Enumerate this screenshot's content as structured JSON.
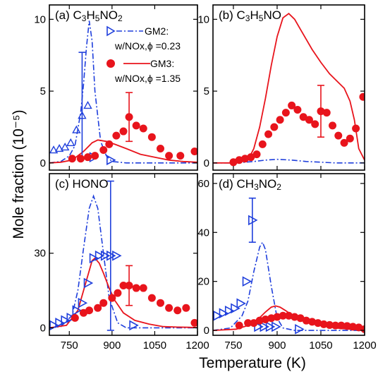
{
  "colors": {
    "gm2": "#1f3fdc",
    "gm3": "#e8141c",
    "axis": "#000000"
  },
  "axes": {
    "xlabel": "Temperature (K)",
    "ylabel": "Mole fraction (10⁻⁵)"
  },
  "legend": {
    "gm2_line1": "GM2:",
    "gm2_line2": "w/NOx,ϕ =0.23",
    "gm3_line1": "GM3:",
    "gm3_line2": "w/NOx,ϕ =1.35"
  },
  "chart_data": [
    {
      "type": "scatter",
      "title": "(a) C3H5NO2",
      "xlim": [
        680,
        1200
      ],
      "ylim": [
        -0.5,
        11
      ],
      "x_ticks": [
        750,
        900,
        1050,
        1200
      ],
      "y_ticks": [
        0,
        5,
        10
      ],
      "series": [
        {
          "name": "GM2: w/NOx,ϕ =0.23",
          "kind": "markers",
          "x": [
            695,
            715,
            735,
            755,
            775,
            795,
            815,
            835,
            895
          ],
          "y": [
            0.9,
            1.0,
            1.1,
            1.4,
            2.3,
            3.3,
            4.0,
            0.4,
            0.2
          ],
          "errorbars": [
            {
              "x": 795,
              "y": 4.0,
              "err": 3.7
            }
          ]
        },
        {
          "name": "GM2 model",
          "kind": "dashdot",
          "x": [
            680,
            720,
            750,
            770,
            790,
            800,
            810,
            820,
            830,
            840,
            860,
            880,
            900,
            950,
            1000,
            1100,
            1200
          ],
          "y": [
            0.0,
            0.1,
            0.5,
            1.2,
            3.5,
            5.5,
            8.0,
            9.9,
            8.5,
            5.0,
            1.5,
            0.5,
            0.1,
            0.0,
            0.0,
            0.0,
            0.0
          ]
        },
        {
          "name": "GM3: w/NOx,ϕ =1.35",
          "kind": "markers",
          "x": [
            760,
            790,
            815,
            840,
            870,
            890,
            915,
            940,
            960,
            985,
            1010,
            1040,
            1070,
            1100,
            1140,
            1190
          ],
          "y": [
            0.3,
            0.3,
            0.4,
            0.5,
            0.9,
            1.3,
            1.9,
            2.2,
            3.2,
            2.6,
            2.4,
            1.8,
            1.0,
            0.5,
            0.5,
            0.8
          ],
          "errorbars": [
            {
              "x": 960,
              "y": 3.2,
              "err": 1.7
            }
          ]
        },
        {
          "name": "GM3 model",
          "kind": "solid",
          "x": [
            680,
            720,
            760,
            800,
            830,
            850,
            880,
            910,
            950,
            1000,
            1050,
            1100,
            1150,
            1200
          ],
          "y": [
            0.0,
            0.05,
            0.2,
            0.8,
            1.4,
            1.6,
            1.5,
            1.3,
            1.0,
            0.6,
            0.4,
            0.2,
            0.1,
            0.05
          ]
        }
      ]
    },
    {
      "type": "scatter",
      "title": "(b) C3H5NO",
      "xlim": [
        680,
        1200
      ],
      "ylim": [
        -0.5,
        11
      ],
      "x_ticks": [
        750,
        900,
        1050,
        1200
      ],
      "y_ticks": [
        0,
        5,
        10
      ],
      "series": [
        {
          "name": "GM2: w/NOx,ϕ =0.23",
          "kind": "markers",
          "x": [],
          "y": []
        },
        {
          "name": "GM2 model",
          "kind": "dashdot",
          "x": [
            680,
            760,
            820,
            860,
            900,
            950,
            1000,
            1050,
            1100,
            1150,
            1200
          ],
          "y": [
            0.0,
            0.0,
            0.1,
            0.2,
            0.25,
            0.2,
            0.1,
            0.05,
            0.0,
            0.0,
            0.0
          ]
        },
        {
          "name": "GM3: w/NOx,ϕ =1.35",
          "kind": "markers",
          "x": [
            750,
            770,
            790,
            810,
            830,
            850,
            870,
            890,
            910,
            930,
            950,
            970,
            990,
            1010,
            1030,
            1050,
            1070,
            1090,
            1110,
            1130,
            1150,
            1170,
            1195
          ],
          "y": [
            0.05,
            0.2,
            0.3,
            0.4,
            0.6,
            1.3,
            2.0,
            2.5,
            3.0,
            3.5,
            4.0,
            3.7,
            3.2,
            3.0,
            2.7,
            3.6,
            3.5,
            2.6,
            1.9,
            1.4,
            1.7,
            2.4,
            4.6
          ],
          "errorbars": [
            {
              "x": 1050,
              "y": 3.6,
              "err": 1.8
            }
          ]
        },
        {
          "name": "GM3 model",
          "kind": "solid",
          "x": [
            680,
            760,
            800,
            820,
            840,
            860,
            880,
            900,
            920,
            940,
            960,
            980,
            1000,
            1020,
            1050,
            1080,
            1110,
            1130,
            1150,
            1165,
            1180,
            1200
          ],
          "y": [
            0.0,
            0.0,
            0.2,
            1.0,
            2.5,
            4.5,
            6.8,
            8.8,
            10.1,
            10.4,
            10.0,
            9.3,
            8.6,
            7.9,
            7.0,
            6.2,
            5.6,
            5.2,
            4.3,
            3.0,
            1.0,
            0.2
          ]
        }
      ]
    },
    {
      "type": "scatter",
      "title": "(c) HONO",
      "xlim": [
        680,
        1200
      ],
      "ylim": [
        -3,
        62
      ],
      "x_ticks": [
        750,
        900,
        1050,
        1200
      ],
      "y_ticks": [
        0,
        30
      ],
      "series": [
        {
          "name": "GM2: w/NOx,ϕ =0.23",
          "kind": "markers",
          "x": [
            695,
            715,
            735,
            755,
            775,
            795,
            815,
            835,
            855,
            875,
            895,
            915,
            975
          ],
          "y": [
            1,
            2,
            3,
            4,
            7,
            10,
            18,
            28,
            29,
            29,
            29,
            29,
            1
          ],
          "errorbars": [
            {
              "x": 895,
              "y": 29,
              "err": 30
            }
          ]
        },
        {
          "name": "GM2 model",
          "kind": "dashdot",
          "x": [
            680,
            720,
            760,
            780,
            800,
            820,
            835,
            850,
            870,
            890,
            920,
            950,
            1000,
            1100,
            1200
          ],
          "y": [
            0.0,
            0.5,
            5,
            15,
            32,
            48,
            53,
            48,
            30,
            12,
            2,
            0,
            0,
            0,
            0
          ]
        },
        {
          "name": "GM3: w/NOx,ϕ =1.35",
          "kind": "markers",
          "x": [
            770,
            800,
            820,
            850,
            870,
            900,
            920,
            940,
            960,
            985,
            1010,
            1040,
            1070,
            1100,
            1130,
            1160,
            1190
          ],
          "y": [
            4,
            6,
            7,
            8,
            10,
            12,
            14,
            17,
            17,
            16,
            16,
            12,
            10,
            8,
            7,
            8,
            2
          ],
          "errorbars": [
            {
              "x": 960,
              "y": 17,
              "err": 8
            }
          ]
        },
        {
          "name": "GM3 model",
          "kind": "solid",
          "x": [
            680,
            740,
            780,
            810,
            830,
            840,
            855,
            870,
            890,
            910,
            940,
            980,
            1030,
            1080,
            1130,
            1170,
            1200
          ],
          "y": [
            0.0,
            1,
            7,
            19,
            27,
            28,
            26,
            22,
            16,
            11,
            6,
            3,
            1.5,
            0.5,
            0.3,
            0.2,
            0.1
          ]
        }
      ]
    },
    {
      "type": "scatter",
      "title": "(d) CH3NO2",
      "xlim": [
        680,
        1200
      ],
      "ylim": [
        -2,
        64
      ],
      "x_ticks": [
        750,
        900,
        1050,
        1200
      ],
      "y_ticks": [
        0,
        20,
        40,
        60
      ],
      "series": [
        {
          "name": "GM2: w/NOx,ϕ =0.23",
          "kind": "markers",
          "x": [
            695,
            715,
            735,
            755,
            775,
            795,
            815,
            835,
            855,
            875,
            895,
            975
          ],
          "y": [
            6,
            7,
            8,
            9,
            11,
            20,
            45,
            1.5,
            1.5,
            1.5,
            1.5,
            0.5
          ],
          "errorbars": [
            {
              "x": 815,
              "y": 45,
              "err": 9
            }
          ]
        },
        {
          "name": "GM2 model",
          "kind": "dashdot",
          "x": [
            680,
            740,
            780,
            800,
            820,
            840,
            850,
            860,
            880,
            900,
            920,
            960,
            1000,
            1100,
            1200
          ],
          "y": [
            0.0,
            1,
            6,
            12,
            24,
            34,
            36,
            33,
            18,
            5,
            1,
            0,
            0,
            0,
            0
          ]
        },
        {
          "name": "GM3: w/NOx,ϕ =1.35",
          "kind": "markers",
          "x": [
            770,
            800,
            820,
            840,
            860,
            880,
            900,
            920,
            940,
            960,
            980,
            1000,
            1020,
            1040,
            1060,
            1080,
            1100,
            1120,
            1140,
            1160,
            1180,
            1200
          ],
          "y": [
            2,
            3,
            3,
            4,
            4.5,
            5,
            5.5,
            6,
            6,
            5.5,
            5,
            4,
            3.5,
            3,
            2.5,
            2.2,
            2,
            2,
            1.8,
            1.5,
            1.2,
            0.5
          ]
        },
        {
          "name": "GM3 model",
          "kind": "solid",
          "x": [
            680,
            760,
            800,
            830,
            860,
            880,
            895,
            910,
            930,
            960,
            1000,
            1050,
            1100,
            1150,
            1200
          ],
          "y": [
            0.0,
            0.5,
            2,
            4,
            7.5,
            9.5,
            10,
            9.5,
            8,
            5.5,
            3.5,
            2,
            1,
            0.5,
            0.2
          ]
        }
      ]
    }
  ]
}
